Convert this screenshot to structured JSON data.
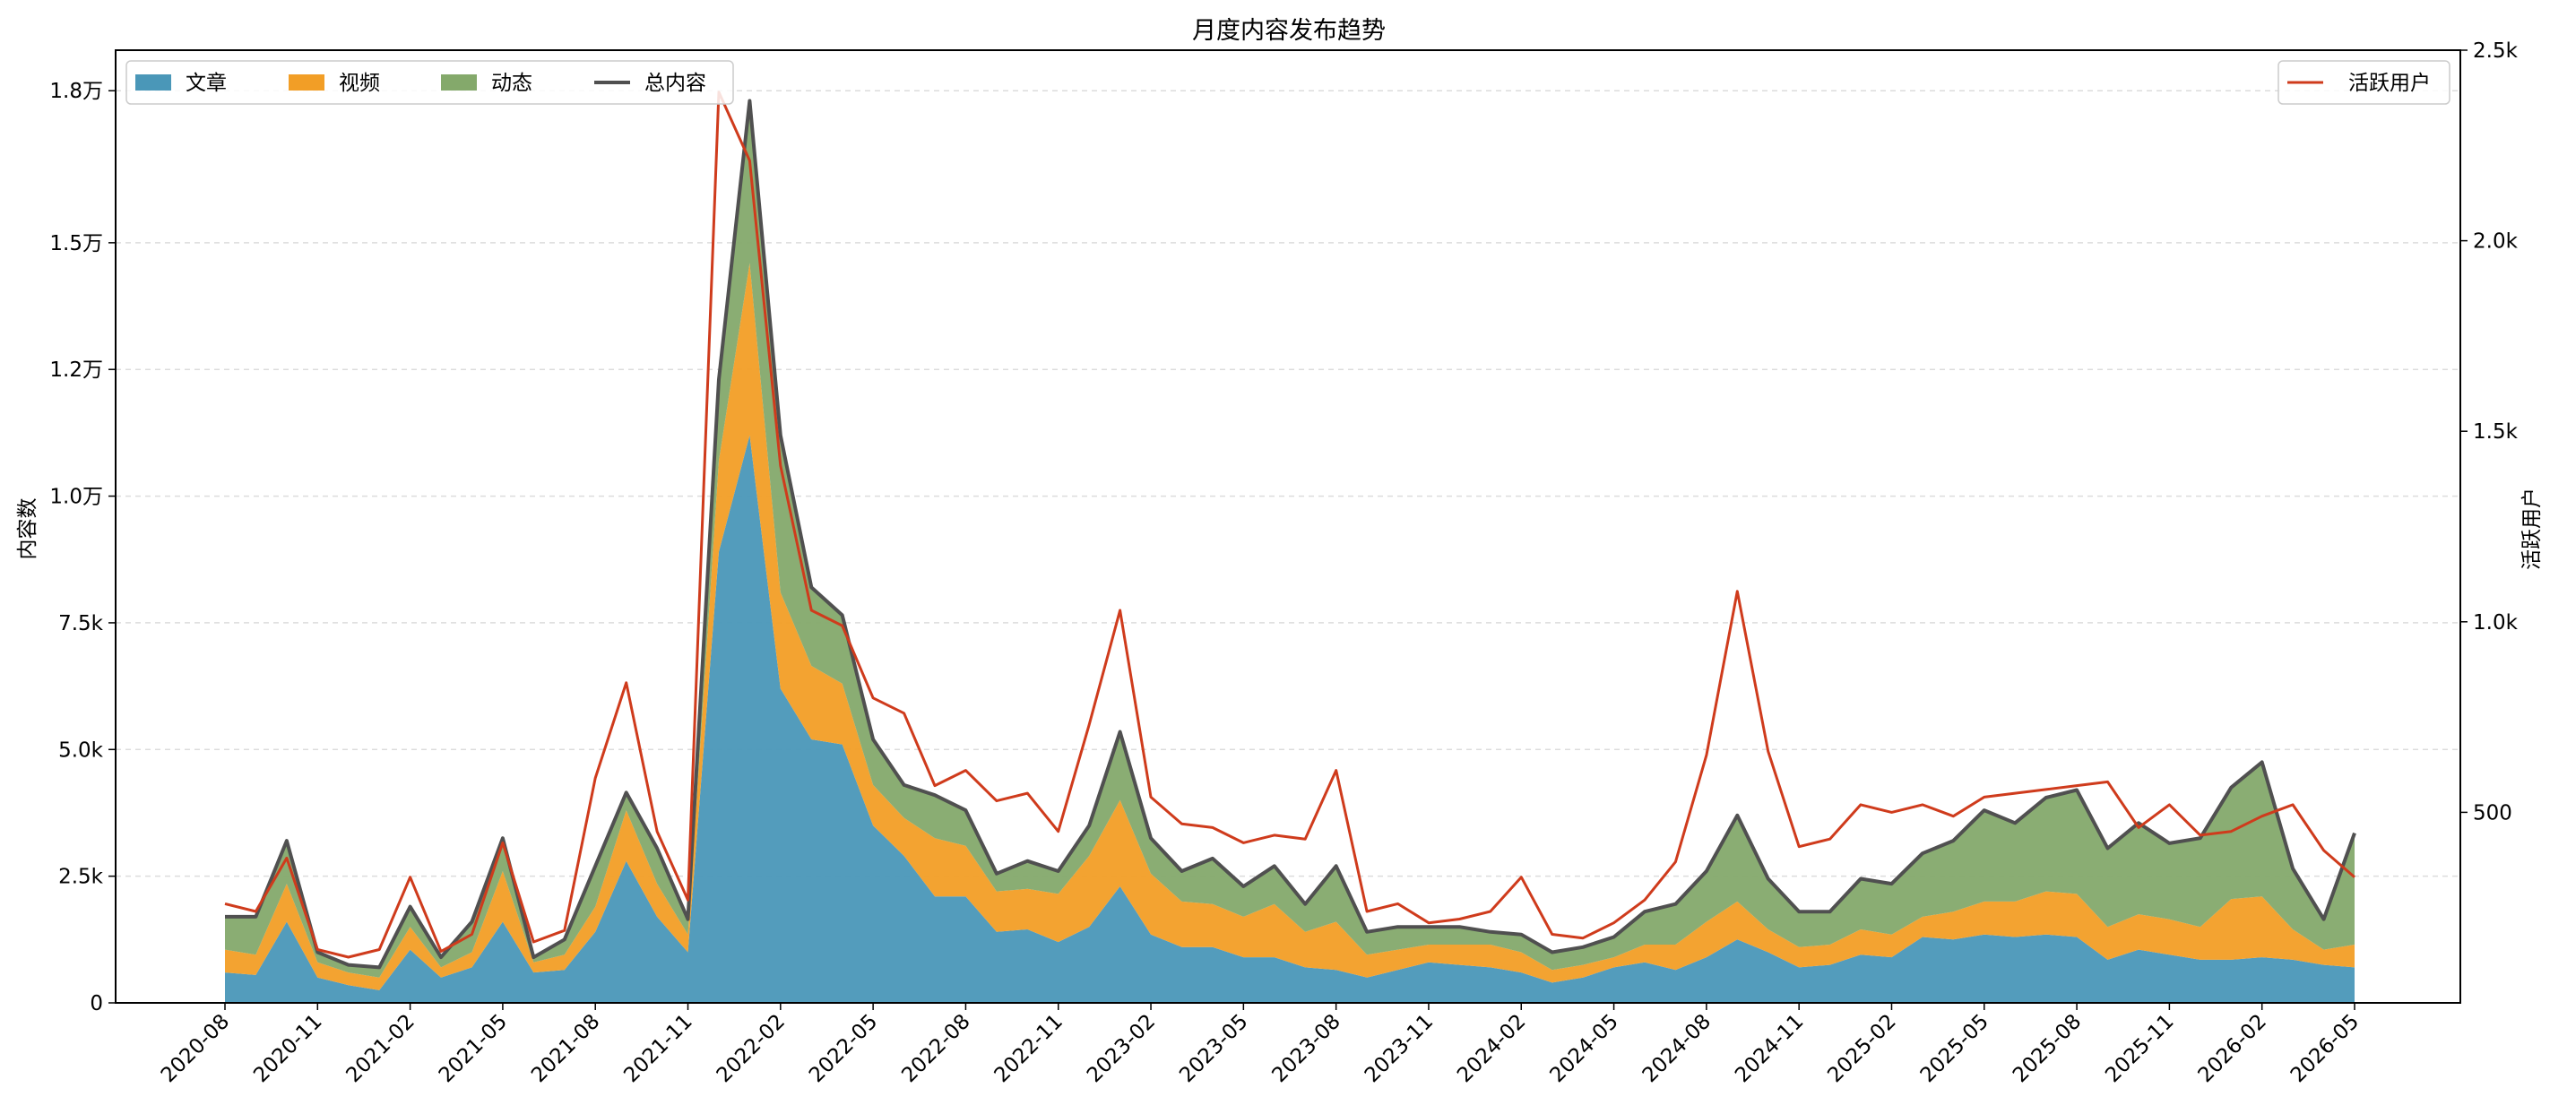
{
  "chart_data": {
    "type": "area",
    "title": "月度内容发布趋势",
    "ylabel": "内容数",
    "y2label": "活跃用户",
    "stacked": true,
    "ylim": [
      0,
      18800
    ],
    "y2lim": [
      0,
      2500
    ],
    "yticks": [
      0,
      2500,
      5000,
      7500,
      10000,
      12500,
      15000,
      18000
    ],
    "ytick_labels": [
      "0",
      "2.5k",
      "5.0k",
      "7.5k",
      "1.0万",
      "1.2万",
      "1.5万",
      "1.8万"
    ],
    "y2ticks": [
      500,
      1000,
      1500,
      2000,
      2500
    ],
    "y2tick_labels": [
      "500",
      "1.0k",
      "1.5k",
      "2.0k",
      "2.5k"
    ],
    "x": [
      "2020-08",
      "2020-09",
      "2020-10",
      "2020-11",
      "2020-12",
      "2021-01",
      "2021-02",
      "2021-03",
      "2021-04",
      "2021-05",
      "2021-06",
      "2021-07",
      "2021-08",
      "2021-09",
      "2021-10",
      "2021-11",
      "2021-12",
      "2022-01",
      "2022-02",
      "2022-03",
      "2022-04",
      "2022-05",
      "2022-06",
      "2022-07",
      "2022-08",
      "2022-09",
      "2022-10",
      "2022-11",
      "2022-12",
      "2023-01",
      "2023-02",
      "2023-03",
      "2023-04",
      "2023-05",
      "2023-06",
      "2023-07",
      "2023-08",
      "2023-09",
      "2023-10",
      "2023-11",
      "2023-12",
      "2024-01",
      "2024-02",
      "2024-03",
      "2024-04",
      "2024-05",
      "2024-06",
      "2024-07",
      "2024-08",
      "2024-09",
      "2024-10",
      "2024-11",
      "2024-12",
      "2025-01",
      "2025-02",
      "2025-03",
      "2025-04",
      "2025-05",
      "2025-06",
      "2025-07",
      "2025-08",
      "2025-09",
      "2025-10",
      "2025-11",
      "2025-12",
      "2026-01",
      "2026-02",
      "2026-03",
      "2026-04",
      "2026-05"
    ],
    "x_tick_labels": [
      "2020-08",
      "2020-11",
      "2021-02",
      "2021-05",
      "2021-08",
      "2021-11",
      "2022-02",
      "2022-05",
      "2022-08",
      "2022-11",
      "2023-02",
      "2023-05",
      "2023-08",
      "2023-11",
      "2024-02",
      "2024-05",
      "2024-08",
      "2024-11",
      "2025-02",
      "2025-05",
      "2025-08",
      "2025-11",
      "2026-02",
      "2026-05"
    ],
    "series": [
      {
        "name": "文章",
        "kind": "area",
        "axis": "left",
        "color": "#4a97b8",
        "values": [
          600,
          550,
          1600,
          500,
          350,
          250,
          1050,
          500,
          700,
          1600,
          600,
          650,
          1400,
          2800,
          1700,
          1000,
          8900,
          11200,
          6200,
          5200,
          5100,
          3500,
          2900,
          2100,
          2100,
          1400,
          1450,
          1200,
          1500,
          2300,
          1350,
          1100,
          1100,
          900,
          900,
          700,
          650,
          500,
          650,
          800,
          750,
          700,
          600,
          400,
          500,
          700,
          800,
          650,
          900,
          1250,
          1000,
          700,
          750,
          950,
          900,
          1300,
          1250,
          1350,
          1300,
          1350,
          1300,
          850,
          1050,
          950,
          850,
          850,
          900,
          850,
          750,
          700
        ]
      },
      {
        "name": "视频",
        "kind": "area",
        "axis": "left",
        "color": "#f29e26",
        "values": [
          450,
          400,
          750,
          300,
          250,
          250,
          450,
          200,
          300,
          1000,
          200,
          300,
          500,
          1000,
          650,
          350,
          1800,
          3400,
          1900,
          1450,
          1200,
          800,
          750,
          1150,
          1000,
          800,
          800,
          950,
          1400,
          1700,
          1200,
          900,
          850,
          800,
          1050,
          700,
          950,
          450,
          400,
          350,
          400,
          450,
          400,
          250,
          250,
          200,
          350,
          500,
          700,
          750,
          450,
          400,
          400,
          500,
          450,
          400,
          550,
          650,
          700,
          850,
          850,
          650,
          700,
          700,
          650,
          1200,
          1200,
          600,
          300,
          450
        ]
      },
      {
        "name": "动态",
        "kind": "area",
        "axis": "left",
        "color": "#84a96b",
        "values": [
          650,
          750,
          850,
          200,
          150,
          200,
          400,
          200,
          600,
          650,
          100,
          300,
          800,
          350,
          700,
          300,
          1600,
          3200,
          3100,
          1550,
          1350,
          900,
          650,
          850,
          700,
          350,
          550,
          450,
          600,
          1350,
          700,
          600,
          900,
          600,
          750,
          550,
          1100,
          450,
          450,
          350,
          350,
          250,
          350,
          350,
          350,
          400,
          650,
          800,
          1000,
          1700,
          1000,
          700,
          650,
          1000,
          1000,
          1250,
          1400,
          1800,
          1550,
          1850,
          2050,
          1550,
          1800,
          1500,
          1750,
          2200,
          2650,
          1200,
          600,
          2200
        ]
      },
      {
        "name": "总内容",
        "kind": "line",
        "axis": "left",
        "color": "#505050",
        "values": [
          1700,
          1700,
          3200,
          1000,
          750,
          700,
          1900,
          900,
          1600,
          3250,
          900,
          1250,
          2700,
          4150,
          3050,
          1650,
          12300,
          17800,
          11200,
          8200,
          7650,
          5200,
          4300,
          4100,
          3800,
          2550,
          2800,
          2600,
          3500,
          5350,
          3250,
          2600,
          2850,
          2300,
          2700,
          1950,
          2700,
          1400,
          1500,
          1500,
          1500,
          1400,
          1350,
          1000,
          1100,
          1300,
          1800,
          1950,
          2600,
          3700,
          2450,
          1800,
          1800,
          2450,
          2350,
          2950,
          3200,
          3800,
          3550,
          4050,
          4200,
          3050,
          3550,
          3150,
          3250,
          4250,
          4750,
          2650,
          1650,
          3350
        ]
      },
      {
        "name": "活跃用户",
        "kind": "line",
        "axis": "right",
        "color": "#cf3b1c",
        "values": [
          260,
          240,
          380,
          140,
          120,
          140,
          330,
          135,
          180,
          420,
          160,
          190,
          590,
          840,
          450,
          270,
          2390,
          2210,
          1410,
          1030,
          990,
          800,
          760,
          570,
          610,
          530,
          550,
          450,
          730,
          1030,
          540,
          470,
          460,
          420,
          440,
          430,
          610,
          240,
          260,
          210,
          220,
          240,
          330,
          180,
          170,
          210,
          270,
          370,
          650,
          1080,
          660,
          410,
          430,
          520,
          500,
          520,
          490,
          540,
          550,
          560,
          570,
          580,
          460,
          520,
          440,
          450,
          490,
          520,
          400,
          330
        ]
      }
    ],
    "legend_left": "top-left",
    "legend_right": "top-right",
    "grid": "horizontal dashed"
  }
}
